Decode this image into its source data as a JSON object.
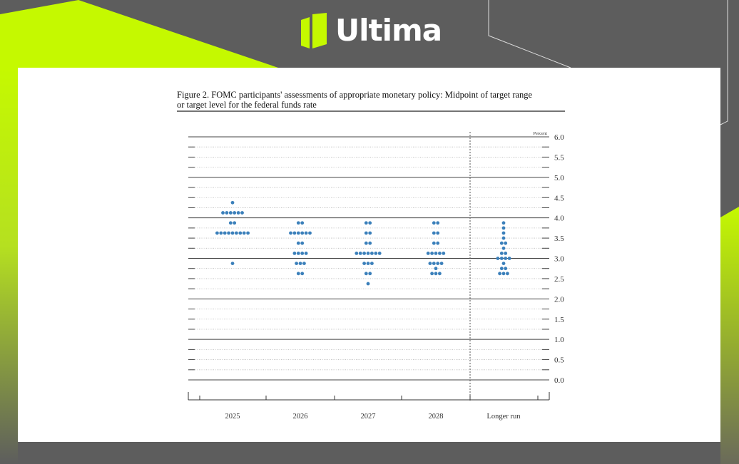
{
  "brand": {
    "name": "Ultima",
    "accent": "#c5f900",
    "background": "#5d5d5d"
  },
  "figure": {
    "title_line1": "Figure 2. FOMC participants' assessments of appropriate monetary policy: Midpoint of target range",
    "title_line2": "or target level for the federal funds rate"
  },
  "chart_data": {
    "type": "scatter",
    "title": "Figure 2. FOMC participants' assessments of appropriate monetary policy: Midpoint of target range or target level for the federal funds rate",
    "ylabel": "Percent",
    "ylim": [
      0,
      6
    ],
    "yticks": [
      "0.0",
      "0.5",
      "1.0",
      "1.5",
      "2.0",
      "2.5",
      "3.0",
      "3.5",
      "4.0",
      "4.5",
      "5.0",
      "5.5",
      "6.0"
    ],
    "categories": [
      "2025",
      "2026",
      "2027",
      "2028",
      "Longer run"
    ],
    "dot_color": "#3a7fba",
    "grid": true,
    "columns": [
      {
        "label": "2025",
        "dots": [
          {
            "rate": 4.375,
            "count": 1
          },
          {
            "rate": 4.125,
            "count": 6
          },
          {
            "rate": 3.875,
            "count": 2
          },
          {
            "rate": 3.625,
            "count": 9
          },
          {
            "rate": 2.875,
            "count": 1
          }
        ]
      },
      {
        "label": "2026",
        "dots": [
          {
            "rate": 3.875,
            "count": 2
          },
          {
            "rate": 3.625,
            "count": 6
          },
          {
            "rate": 3.375,
            "count": 2
          },
          {
            "rate": 3.125,
            "count": 4
          },
          {
            "rate": 2.875,
            "count": 3
          },
          {
            "rate": 2.625,
            "count": 2
          }
        ]
      },
      {
        "label": "2027",
        "dots": [
          {
            "rate": 3.875,
            "count": 2
          },
          {
            "rate": 3.625,
            "count": 2
          },
          {
            "rate": 3.375,
            "count": 2
          },
          {
            "rate": 3.125,
            "count": 7
          },
          {
            "rate": 2.875,
            "count": 3
          },
          {
            "rate": 2.625,
            "count": 2
          },
          {
            "rate": 2.375,
            "count": 1
          }
        ]
      },
      {
        "label": "2028",
        "dots": [
          {
            "rate": 3.875,
            "count": 2
          },
          {
            "rate": 3.625,
            "count": 2
          },
          {
            "rate": 3.375,
            "count": 2
          },
          {
            "rate": 3.125,
            "count": 5
          },
          {
            "rate": 2.875,
            "count": 4
          },
          {
            "rate": 2.75,
            "count": 1
          },
          {
            "rate": 2.625,
            "count": 3
          }
        ]
      },
      {
        "label": "Longer run",
        "dots": [
          {
            "rate": 3.875,
            "count": 1
          },
          {
            "rate": 3.75,
            "count": 1
          },
          {
            "rate": 3.625,
            "count": 1
          },
          {
            "rate": 3.5,
            "count": 1
          },
          {
            "rate": 3.375,
            "count": 2
          },
          {
            "rate": 3.25,
            "count": 1
          },
          {
            "rate": 3.125,
            "count": 2
          },
          {
            "rate": 3.0,
            "count": 4
          },
          {
            "rate": 2.875,
            "count": 1
          },
          {
            "rate": 2.75,
            "count": 2
          },
          {
            "rate": 2.625,
            "count": 3
          }
        ]
      }
    ]
  }
}
